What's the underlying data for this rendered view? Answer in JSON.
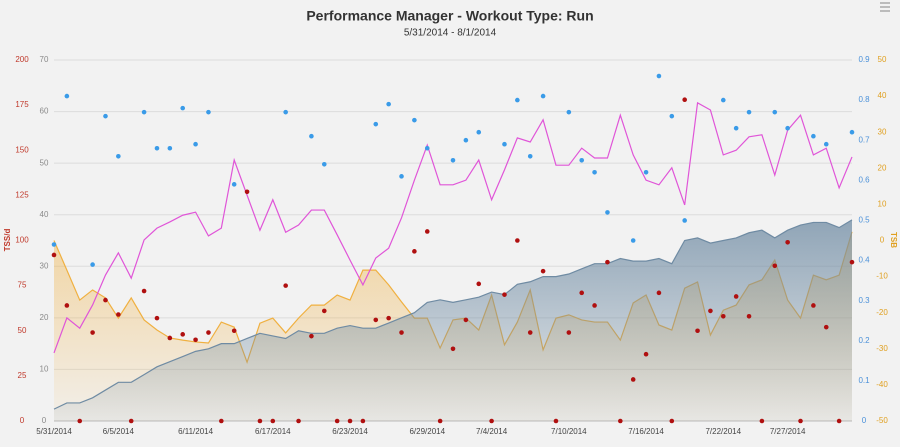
{
  "chart_data": {
    "type": "performance",
    "title": "Performance Manager - Workout Type: Run",
    "subtitle": "5/31/2014 - 8/1/2014",
    "categories": [
      "5/31/2014",
      null,
      null,
      null,
      null,
      "6/5/2014",
      null,
      null,
      null,
      null,
      null,
      "6/11/2014",
      null,
      null,
      null,
      null,
      null,
      "6/17/2014",
      null,
      null,
      null,
      null,
      null,
      "6/23/2014",
      null,
      null,
      null,
      null,
      null,
      "6/29/2014",
      null,
      null,
      null,
      null,
      "7/4/2014",
      null,
      null,
      null,
      null,
      null,
      "7/10/2014",
      null,
      null,
      null,
      null,
      null,
      "7/16/2014",
      null,
      null,
      null,
      null,
      null,
      "7/22/2014",
      null,
      null,
      null,
      null,
      "7/27/2014",
      null,
      null,
      null,
      null,
      null
    ],
    "ylabel": "TSS/d",
    "ylim": [
      0,
      200
    ],
    "yticks": [
      0,
      25,
      50,
      75,
      100,
      125,
      150,
      175,
      200
    ],
    "y2lim": [
      0,
      70
    ],
    "y2ticks": [
      0,
      10,
      20,
      30,
      40,
      50,
      60,
      70
    ],
    "y3lim": [
      0,
      0.9
    ],
    "y3ticks": [
      0,
      0.1,
      0.2,
      0.3,
      0.4,
      0.5,
      0.6,
      0.7,
      0.8,
      0.9
    ],
    "y4label": "TSB",
    "y4lim": [
      -50,
      50
    ],
    "y4ticks": [
      -50,
      -40,
      -30,
      -20,
      -10,
      0,
      10,
      20,
      30,
      40,
      50
    ],
    "axis_colors": {
      "y": "#c0392b",
      "y2": "#8a8a8a",
      "y3": "#4a90d9",
      "y4": "#e0a020"
    },
    "grid": "y2",
    "series": [
      {
        "style": "area",
        "axis": "y4",
        "color": "#f0b040",
        "values": [
          0,
          -8.2,
          -16.5,
          -13.7,
          -15.9,
          -21.5,
          -15.9,
          -22,
          -24.8,
          -27,
          -27.6,
          -28.1,
          -28.4,
          -22.6,
          -24,
          -33.7,
          -22.9,
          -21.5,
          -25.6,
          -21.5,
          -17.9,
          -17.9,
          -15.1,
          -16.5,
          -8.2,
          -8.2,
          -12.3,
          -17,
          -21.5,
          -21.5,
          -29.8,
          -22,
          -21.5,
          -24.8,
          -15.1,
          -28.9,
          -22.6,
          -13.7,
          -30.3,
          -21.5,
          -20.6,
          -22,
          -22.6,
          -22.6,
          -27.6,
          -17.3,
          -15.1,
          -23.4,
          -24.8,
          -13.2,
          -11.5,
          -26.2,
          -19.3,
          -17.9,
          -12.3,
          -10.9,
          -5.4,
          -16.5,
          -21.5,
          -9.6,
          -10.9,
          -9.6,
          2.4
        ]
      },
      {
        "style": "area",
        "axis": "y2",
        "color": "#6f8ba3",
        "values": [
          2.3,
          3.5,
          3.5,
          4.5,
          6,
          7.5,
          7.5,
          9,
          10.5,
          11.5,
          12.5,
          13.5,
          14,
          15,
          15,
          16,
          17,
          16.5,
          16,
          17.5,
          17,
          17,
          18,
          18.5,
          18,
          18,
          19,
          20,
          21,
          23,
          23.5,
          23,
          23.5,
          24,
          25,
          24.5,
          26.5,
          27,
          28,
          28,
          28.5,
          29.5,
          30.5,
          30.5,
          31.5,
          31,
          31,
          31.5,
          30.5,
          35,
          35.5,
          34.5,
          35,
          35.5,
          36.5,
          37,
          35.5,
          37,
          38,
          38.5,
          38.5,
          37.5,
          39
        ]
      },
      {
        "style": "line",
        "axis": "y2",
        "color": "#e055d8",
        "values": [
          13.2,
          20,
          18,
          22.5,
          28.3,
          32.6,
          27.7,
          35.1,
          37.4,
          38.6,
          39.9,
          40.5,
          35.9,
          37.4,
          50.6,
          43.8,
          37,
          42.9,
          36.6,
          38,
          40.9,
          40.9,
          36.1,
          31.2,
          26.4,
          31.6,
          33.5,
          39.4,
          46.7,
          53.5,
          45.8,
          45.8,
          46.7,
          50.6,
          42.9,
          48.7,
          54.9,
          54.1,
          58.4,
          49.6,
          49.6,
          52.9,
          51,
          51,
          59.3,
          51.6,
          46.7,
          45.8,
          49.1,
          41.9,
          61.7,
          60.3,
          51.6,
          52.5,
          55.1,
          55.5,
          47.7,
          56.4,
          59.3,
          51.6,
          52.9,
          45.2,
          51.2
        ]
      },
      {
        "style": "dots",
        "axis": "y",
        "color": "#b01010",
        "values": [
          92,
          64,
          0,
          49,
          67,
          59,
          0,
          72,
          57,
          46,
          48,
          45,
          49,
          0,
          50,
          127,
          0,
          0,
          75,
          0,
          47,
          61,
          0,
          0,
          0,
          56,
          57,
          49,
          94,
          105,
          0,
          40,
          56,
          76,
          0,
          70,
          100,
          49,
          83,
          0,
          49,
          71,
          64,
          88,
          0,
          23,
          37,
          71,
          0,
          178,
          50,
          61,
          58,
          69,
          58,
          0,
          86,
          99,
          0,
          64,
          52,
          0,
          88
        ]
      },
      {
        "style": "dots",
        "axis": "y3",
        "color": "#3a9be8",
        "values": [
          0.44,
          0.81,
          null,
          0.39,
          0.76,
          0.66,
          null,
          0.77,
          0.68,
          0.68,
          0.78,
          0.69,
          0.77,
          null,
          0.59,
          null,
          null,
          null,
          0.77,
          null,
          0.71,
          0.64,
          null,
          null,
          null,
          0.74,
          0.79,
          0.61,
          0.75,
          0.68,
          null,
          0.65,
          0.7,
          0.72,
          null,
          0.69,
          0.8,
          0.66,
          0.81,
          null,
          0.77,
          0.65,
          0.62,
          0.52,
          null,
          0.45,
          0.62,
          0.86,
          0.76,
          0.5,
          null,
          null,
          0.8,
          0.73,
          0.77,
          null,
          0.77,
          0.73,
          null,
          0.71,
          0.69,
          null,
          0.72
        ]
      }
    ]
  }
}
